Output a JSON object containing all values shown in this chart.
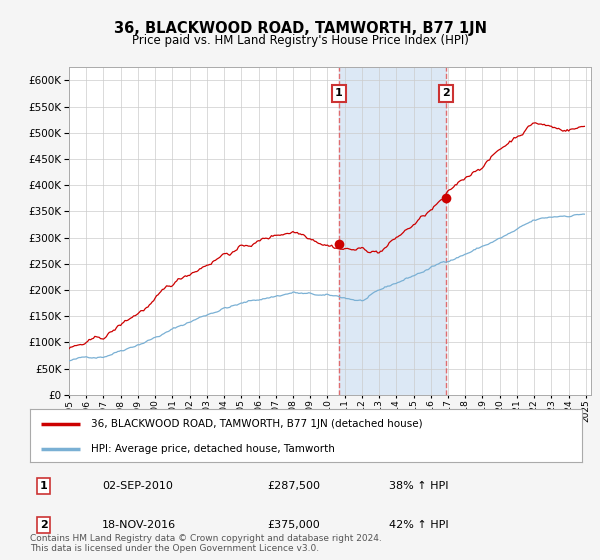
{
  "title": "36, BLACKWOOD ROAD, TAMWORTH, B77 1JN",
  "subtitle": "Price paid vs. HM Land Registry's House Price Index (HPI)",
  "ylim": [
    0,
    625000
  ],
  "yticks": [
    0,
    50000,
    100000,
    150000,
    200000,
    250000,
    300000,
    350000,
    400000,
    450000,
    500000,
    550000,
    600000
  ],
  "x_start_year": 1995,
  "x_end_year": 2025,
  "sale1_date": "02-SEP-2010",
  "sale1_price": 287500,
  "sale1_hpi_pct": "38%",
  "sale2_date": "18-NOV-2016",
  "sale2_price": 375000,
  "sale2_hpi_pct": "42%",
  "sale1_x": 2010.67,
  "sale2_x": 2016.88,
  "red_line_color": "#cc0000",
  "blue_line_color": "#7ab0d4",
  "vline_color": "#e06060",
  "background_color": "#f5f5f5",
  "plot_bg_color": "#ffffff",
  "grid_color": "#cccccc",
  "span_color": "#dce8f5",
  "legend_label1": "36, BLACKWOOD ROAD, TAMWORTH, B77 1JN (detached house)",
  "legend_label2": "HPI: Average price, detached house, Tamworth",
  "footnote": "Contains HM Land Registry data © Crown copyright and database right 2024.\nThis data is licensed under the Open Government Licence v3.0.",
  "marker_label1": "1",
  "marker_label2": "2"
}
